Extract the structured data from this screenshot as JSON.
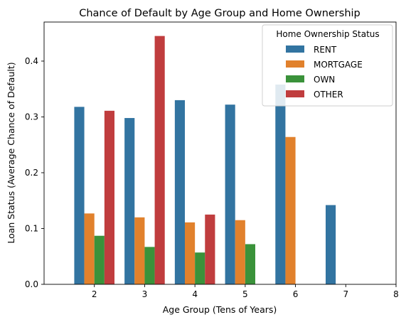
{
  "chart_data": {
    "type": "bar",
    "title": "Chance of Default by Age Group and Home Ownership",
    "xlabel": "Age Group (Tens of Years)",
    "ylabel": "Loan Status (Average Chance of Default)",
    "categories": [
      "2",
      "3",
      "4",
      "5",
      "6",
      "7"
    ],
    "x_ticks": [
      "2",
      "3",
      "4",
      "5",
      "6",
      "7",
      "8"
    ],
    "y_ticks": [
      "0.0",
      "0.1",
      "0.2",
      "0.3",
      "0.4"
    ],
    "ylim": [
      0,
      0.47
    ],
    "xlim": [
      1,
      8
    ],
    "grid": false,
    "legend_title": "Home Ownership Status",
    "legend_position": "top-right",
    "series": [
      {
        "name": "RENT",
        "color": "#3274a1",
        "values": [
          0.318,
          0.298,
          0.33,
          0.322,
          0.358,
          0.142
        ]
      },
      {
        "name": "MORTGAGE",
        "color": "#e1812c",
        "values": [
          0.127,
          0.12,
          0.111,
          0.115,
          0.264,
          null
        ]
      },
      {
        "name": "OWN",
        "color": "#3a923a",
        "values": [
          0.087,
          0.067,
          0.057,
          0.072,
          null,
          null
        ]
      },
      {
        "name": "OTHER",
        "color": "#c03d3e",
        "values": [
          0.311,
          0.445,
          0.125,
          null,
          null,
          null
        ]
      }
    ]
  }
}
